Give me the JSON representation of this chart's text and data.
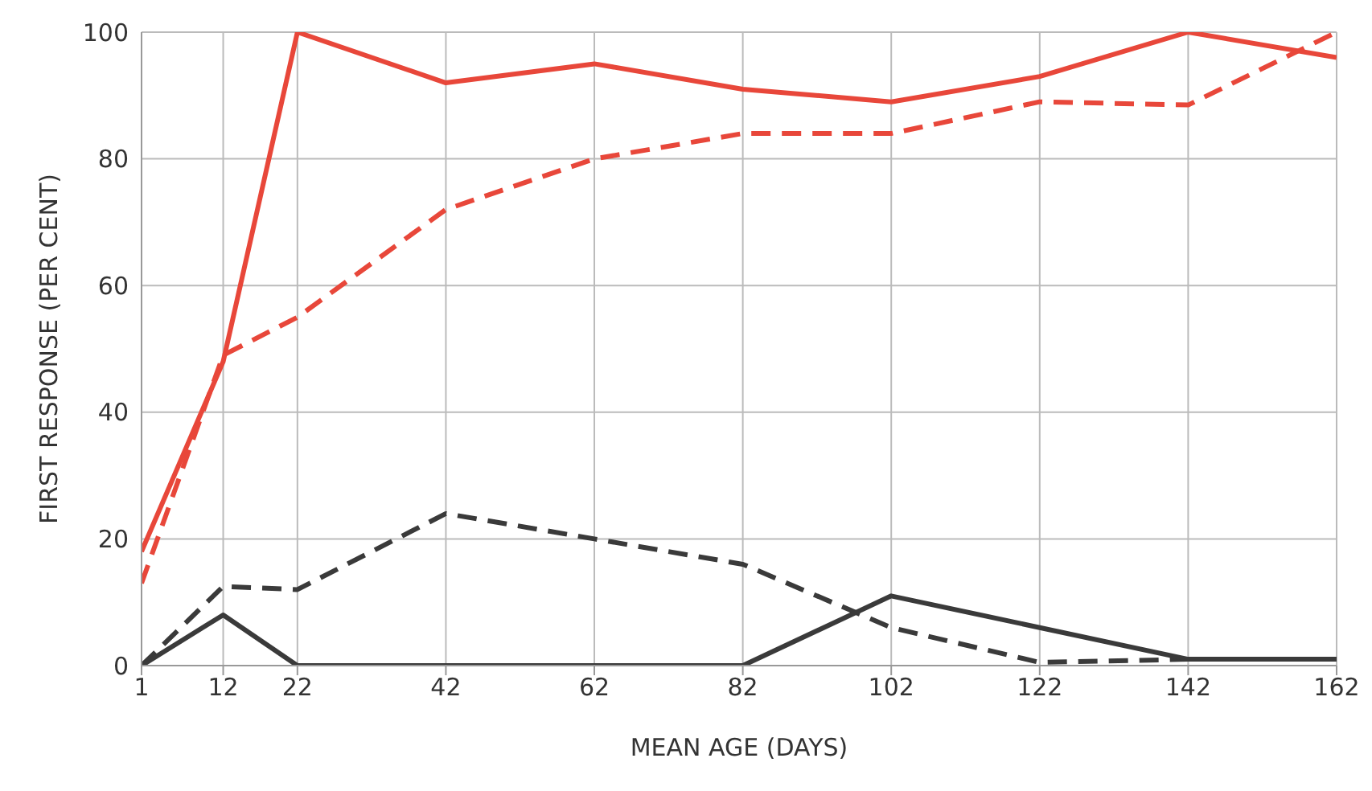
{
  "chart_data": {
    "type": "line",
    "xlabel": "MEAN AGE (DAYS)",
    "ylabel": "FIRST RESPONSE (PER CENT)",
    "x": [
      1,
      12,
      22,
      42,
      62,
      82,
      102,
      122,
      142,
      162
    ],
    "series": [
      {
        "color": "#e8473a",
        "line_style": "solid",
        "values": [
          18,
          48,
          100,
          92,
          95,
          91,
          89,
          93,
          100,
          96
        ]
      },
      {
        "color": "#e8473a",
        "line_style": "dashed",
        "values": [
          13,
          49,
          55,
          72,
          80,
          84,
          84,
          89,
          88.5,
          100
        ]
      },
      {
        "color": "#3a3a3a",
        "line_style": "dashed",
        "values": [
          0,
          12.5,
          12,
          24,
          20,
          16,
          6,
          0.5,
          1,
          null
        ]
      },
      {
        "color": "#3a3a3a",
        "line_style": "solid",
        "values": [
          0,
          8,
          0,
          0,
          0,
          0,
          11,
          6,
          1,
          1
        ]
      }
    ],
    "xlim": [
      1,
      162
    ],
    "xticks": [
      1,
      12,
      22,
      42,
      62,
      82,
      102,
      122,
      142,
      162
    ],
    "ylim": [
      0,
      100
    ],
    "yticks": [
      0,
      20,
      40,
      60,
      80,
      100
    ],
    "grid": true,
    "marker": "none"
  }
}
